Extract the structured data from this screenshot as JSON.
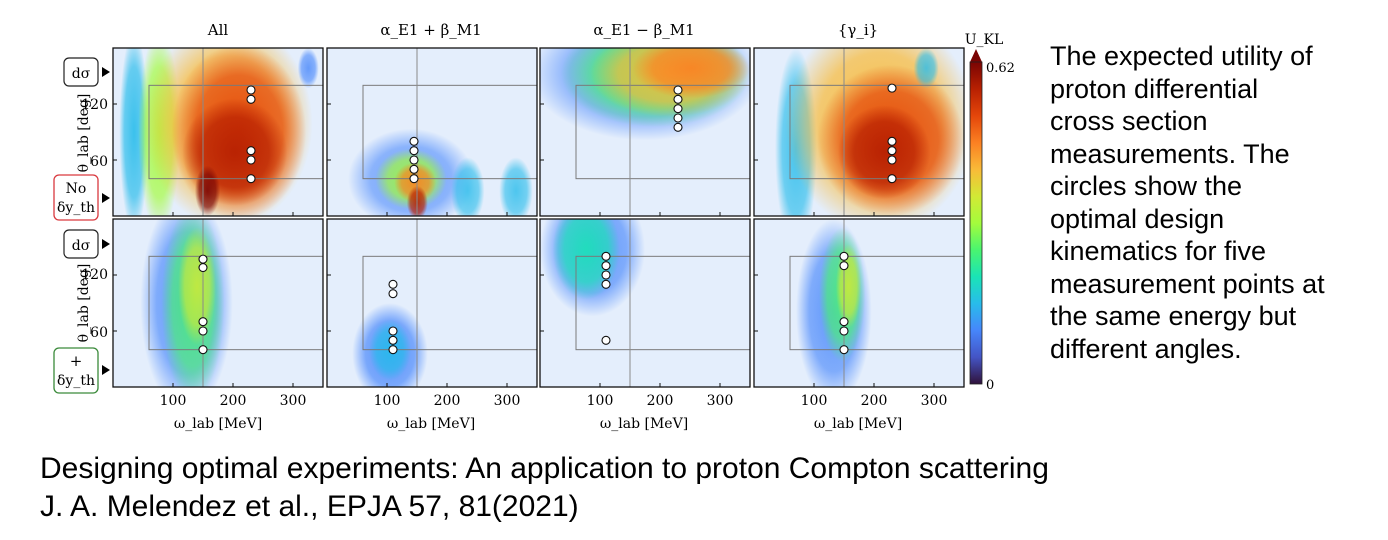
{
  "figure": {
    "column_titles": [
      "All",
      "α_E1 + β_M1",
      "α_E1 − β_M1",
      "{γ_i}"
    ],
    "rows": [
      {
        "label_top": "dσ",
        "label_bottom_1": "No",
        "label_bottom_2": "δy_th",
        "badge_color": "#d9393f"
      },
      {
        "label_top": "dσ",
        "label_bottom_1": "+",
        "label_bottom_2": "δy_th",
        "badge_color": "#3a8a3a"
      }
    ],
    "xlabel": "ω_lab [MeV]",
    "ylabel": "θ_lab [deg]",
    "xticks": [
      "100",
      "200",
      "300"
    ],
    "yticks": [
      "120",
      "60"
    ],
    "colorbar": {
      "label": "U_KL",
      "max_label": "0.62",
      "min_label": "0"
    },
    "colormap": "turbo"
  },
  "chart_data": {
    "type": "heatmap",
    "quantity": "U_KL",
    "xlabel": "ω_lab [MeV]",
    "ylabel": "θ_lab [deg]",
    "xlim": [
      0,
      350
    ],
    "ylim": [
      0,
      180
    ],
    "clim": [
      0,
      0.62
    ],
    "panels": [
      {
        "row": 0,
        "col": 0,
        "title": "All",
        "design_points": [
          {
            "x": 230,
            "y": 135
          },
          {
            "x": 230,
            "y": 125
          },
          {
            "x": 230,
            "y": 70
          },
          {
            "x": 230,
            "y": 60
          },
          {
            "x": 230,
            "y": 40
          }
        ]
      },
      {
        "row": 0,
        "col": 1,
        "title": "α_E1 + β_M1",
        "design_points": [
          {
            "x": 145,
            "y": 80
          },
          {
            "x": 145,
            "y": 70
          },
          {
            "x": 145,
            "y": 60
          },
          {
            "x": 145,
            "y": 50
          },
          {
            "x": 145,
            "y": 40
          }
        ]
      },
      {
        "row": 0,
        "col": 2,
        "title": "α_E1 − β_M1",
        "design_points": [
          {
            "x": 230,
            "y": 135
          },
          {
            "x": 230,
            "y": 125
          },
          {
            "x": 230,
            "y": 115
          },
          {
            "x": 230,
            "y": 105
          },
          {
            "x": 230,
            "y": 95
          }
        ]
      },
      {
        "row": 0,
        "col": 3,
        "title": "{γ_i}",
        "design_points": [
          {
            "x": 230,
            "y": 137
          },
          {
            "x": 230,
            "y": 80
          },
          {
            "x": 230,
            "y": 70
          },
          {
            "x": 230,
            "y": 60
          },
          {
            "x": 230,
            "y": 40
          }
        ]
      },
      {
        "row": 1,
        "col": 0,
        "title": "All",
        "design_points": [
          {
            "x": 150,
            "y": 137
          },
          {
            "x": 150,
            "y": 128
          },
          {
            "x": 150,
            "y": 70
          },
          {
            "x": 150,
            "y": 60
          },
          {
            "x": 150,
            "y": 40
          }
        ]
      },
      {
        "row": 1,
        "col": 1,
        "title": "α_E1 + β_M1",
        "design_points": [
          {
            "x": 110,
            "y": 110
          },
          {
            "x": 110,
            "y": 100
          },
          {
            "x": 110,
            "y": 60
          },
          {
            "x": 110,
            "y": 50
          },
          {
            "x": 110,
            "y": 40
          }
        ]
      },
      {
        "row": 1,
        "col": 2,
        "title": "α_E1 − β_M1",
        "design_points": [
          {
            "x": 110,
            "y": 140
          },
          {
            "x": 110,
            "y": 130
          },
          {
            "x": 110,
            "y": 120
          },
          {
            "x": 110,
            "y": 110
          },
          {
            "x": 110,
            "y": 50
          }
        ]
      },
      {
        "row": 1,
        "col": 3,
        "title": "{γ_i}",
        "design_points": [
          {
            "x": 150,
            "y": 140
          },
          {
            "x": 150,
            "y": 130
          },
          {
            "x": 150,
            "y": 70
          },
          {
            "x": 150,
            "y": 60
          },
          {
            "x": 150,
            "y": 40
          }
        ]
      }
    ],
    "reference_box": {
      "x": [
        60,
        400
      ],
      "y": [
        40,
        140
      ]
    },
    "reference_line_x": 150
  },
  "description": "The  expected utility of\nproton differential\ncross section\nmeasurements. The\ncircles show the\noptimal design\nkinematics for five\nmeasurement points at\nthe same energy but\ndifferent angles.",
  "footer": {
    "line1": "Designing optimal experiments: An application to proton Compton scattering",
    "line2": "J. A. Melendez et al., EPJA 57, 81(2021)"
  }
}
